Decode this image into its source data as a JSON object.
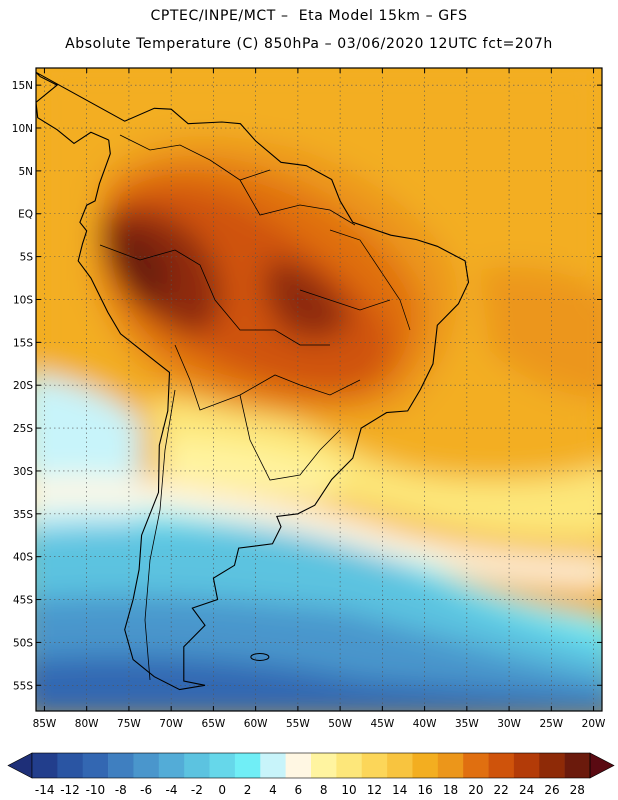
{
  "header": {
    "line1": "CPTEC/INPE/MCT –  Eta Model 15km – GFS",
    "line2": "Absolute Temperature (C) 850hPa – 03/06/2020 12UTC fct=207h"
  },
  "map": {
    "lon_range": [
      -86,
      -19
    ],
    "lat_range": [
      -58,
      17
    ],
    "lon_ticks": [
      {
        "value": -85,
        "label": "85W"
      },
      {
        "value": -80,
        "label": "80W"
      },
      {
        "value": -75,
        "label": "75W"
      },
      {
        "value": -70,
        "label": "70W"
      },
      {
        "value": -65,
        "label": "65W"
      },
      {
        "value": -60,
        "label": "60W"
      },
      {
        "value": -55,
        "label": "55W"
      },
      {
        "value": -50,
        "label": "50W"
      },
      {
        "value": -45,
        "label": "45W"
      },
      {
        "value": -40,
        "label": "40W"
      },
      {
        "value": -35,
        "label": "35W"
      },
      {
        "value": -30,
        "label": "30W"
      },
      {
        "value": -25,
        "label": "25W"
      },
      {
        "value": -20,
        "label": "20W"
      }
    ],
    "lat_ticks": [
      {
        "value": 15,
        "label": "15N"
      },
      {
        "value": 10,
        "label": "10N"
      },
      {
        "value": 5,
        "label": "5N"
      },
      {
        "value": 0,
        "label": "EQ"
      },
      {
        "value": -5,
        "label": "5S"
      },
      {
        "value": -10,
        "label": "10S"
      },
      {
        "value": -15,
        "label": "15S"
      },
      {
        "value": -20,
        "label": "20S"
      },
      {
        "value": -25,
        "label": "25S"
      },
      {
        "value": -30,
        "label": "30S"
      },
      {
        "value": -35,
        "label": "35S"
      },
      {
        "value": -40,
        "label": "40S"
      },
      {
        "value": -45,
        "label": "45S"
      },
      {
        "value": -50,
        "label": "50S"
      },
      {
        "value": -55,
        "label": "55S"
      }
    ],
    "grid": "dotted, every 5 degrees",
    "coastline_lonlat": [
      [
        -77.4,
        8.6
      ],
      [
        -79.5,
        9.5
      ],
      [
        -81.5,
        8.2
      ],
      [
        -83.5,
        9.8
      ],
      [
        -85.8,
        11.2
      ],
      [
        -86,
        13
      ],
      [
        -83.5,
        15
      ],
      [
        -85.5,
        16
      ],
      [
        -86,
        16.5
      ],
      [
        -75.5,
        10.8
      ],
      [
        -72,
        12.3
      ],
      [
        -70,
        12.2
      ],
      [
        -68,
        10.5
      ],
      [
        -64,
        10.7
      ],
      [
        -61.8,
        10.5
      ],
      [
        -60,
        8.5
      ],
      [
        -57,
        6
      ],
      [
        -54,
        5.6
      ],
      [
        -51,
        4
      ],
      [
        -50,
        1.5
      ],
      [
        -48.5,
        -1
      ],
      [
        -44,
        -2.5
      ],
      [
        -41,
        -3
      ],
      [
        -38.5,
        -3.8
      ],
      [
        -35.2,
        -5.5
      ],
      [
        -34.8,
        -8
      ],
      [
        -36,
        -10.5
      ],
      [
        -38.5,
        -13
      ],
      [
        -39,
        -17.5
      ],
      [
        -40.5,
        -20.5
      ],
      [
        -42,
        -23
      ],
      [
        -44.5,
        -23.2
      ],
      [
        -47.5,
        -25
      ],
      [
        -48.5,
        -28.5
      ],
      [
        -51,
        -31
      ],
      [
        -53,
        -34
      ],
      [
        -55,
        -35
      ],
      [
        -57.5,
        -35.3
      ],
      [
        -57,
        -36.5
      ],
      [
        -58,
        -38.5
      ],
      [
        -62,
        -39
      ],
      [
        -62.5,
        -41
      ],
      [
        -65,
        -42.5
      ],
      [
        -64.5,
        -45
      ],
      [
        -67.5,
        -46
      ],
      [
        -66,
        -48
      ],
      [
        -68.5,
        -50.5
      ],
      [
        -68.5,
        -52.3
      ],
      [
        -68.5,
        -54.5
      ],
      [
        -66,
        -55
      ],
      [
        -69,
        -55.5
      ],
      [
        -72,
        -54
      ],
      [
        -74.5,
        -52
      ],
      [
        -75.5,
        -48.5
      ],
      [
        -74.5,
        -45
      ],
      [
        -73.8,
        -41.5
      ],
      [
        -73.5,
        -37.5
      ],
      [
        -71.5,
        -32.5
      ],
      [
        -71.4,
        -27
      ],
      [
        -70.4,
        -23
      ],
      [
        -70.2,
        -18.5
      ],
      [
        -71.5,
        -17.5
      ],
      [
        -76,
        -14
      ],
      [
        -77.5,
        -11.5
      ],
      [
        -79.5,
        -7.5
      ],
      [
        -81,
        -5.5
      ],
      [
        -80.5,
        -3.5
      ],
      [
        -80,
        -2
      ],
      [
        -80.8,
        -1
      ],
      [
        -80,
        1
      ],
      [
        -79,
        1.5
      ],
      [
        -78.5,
        3.5
      ],
      [
        -77.2,
        7
      ],
      [
        -77.4,
        8.6
      ]
    ],
    "caption_note": ""
  },
  "colorbar": {
    "labels": [
      "-14",
      "-12",
      "-10",
      "-8",
      "-6",
      "-4",
      "-2",
      "0",
      "2",
      "4",
      "6",
      "8",
      "10",
      "12",
      "14",
      "16",
      "18",
      "20",
      "22",
      "24",
      "26",
      "28"
    ],
    "colors": [
      "#223e8c",
      "#2a55a3",
      "#3367b2",
      "#3f7fc0",
      "#4a96cc",
      "#53acd7",
      "#5cc3e0",
      "#66d7ea",
      "#70eef6",
      "#c8f4fa",
      "#fff7e3",
      "#fff4a0",
      "#fde77a",
      "#fcd659",
      "#f8c43f",
      "#f3ae20",
      "#ec961a",
      "#e06f10",
      "#cf530b",
      "#b33b08",
      "#8e2a07",
      "#6b1a0c"
    ],
    "low_arrow_color": "#1e2f78",
    "high_arrow_color": "#5a0a12"
  }
}
